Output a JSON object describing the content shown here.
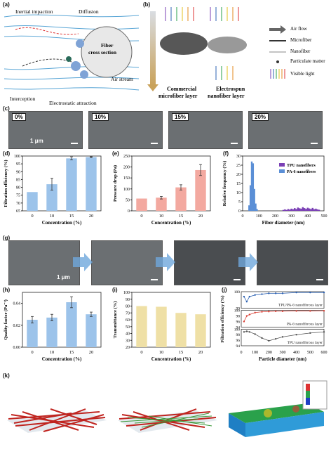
{
  "labels": {
    "a": "(a)",
    "b": "(b)",
    "c": "(c)",
    "d": "(d)",
    "e": "(e)",
    "f": "(f)",
    "g": "(g)",
    "h": "(h)",
    "i": "(i)",
    "j": "(j)",
    "k": "(k)"
  },
  "panel_a": {
    "inertial": "Inertial impaction",
    "diffusion": "Diffusion",
    "fiber1": "Fiber",
    "fiber2": "cross section",
    "air": "Air stream",
    "interception": "Interception",
    "electrostatic": "Electrostatic attraction"
  },
  "panel_b": {
    "commercial1": "Commercial",
    "commercial2": "microfiber layer",
    "electro1": "Electrospun",
    "electro2": "nanofiber layer",
    "legend": [
      "Air flow",
      "Microfiber",
      "Nanofiber",
      "Particulate matter",
      "Visible light"
    ]
  },
  "panel_c": {
    "tags": [
      "0%",
      "10%",
      "15%",
      "20%"
    ],
    "scale": "1 μm"
  },
  "panel_g": {
    "scale": "1 μm"
  },
  "chart_data": [
    {
      "id": "d",
      "type": "bar",
      "categories": [
        "0",
        "10",
        "15",
        "20"
      ],
      "values": [
        77,
        82,
        98.5,
        99.3
      ],
      "errors": [
        0,
        3.8,
        1,
        0.4
      ],
      "ylabel": "Filtration efficiency (%)",
      "xlabel": "Concentration (%)",
      "ylim": [
        65,
        100
      ],
      "yticks": [
        "65",
        "70",
        "75",
        "80",
        "85",
        "90",
        "95",
        "100"
      ],
      "color": "#9cc3ea"
    },
    {
      "id": "e",
      "type": "bar",
      "categories": [
        "0",
        "10",
        "15",
        "20"
      ],
      "values": [
        56,
        60,
        107,
        186
      ],
      "errors": [
        0,
        6,
        12,
        25
      ],
      "ylabel": "Pressure drop (Pa)",
      "xlabel": "Concentration (%)",
      "ylim": [
        0,
        250
      ],
      "yticks": [
        "0",
        "50",
        "100",
        "150",
        "200",
        "250"
      ],
      "color": "#f3a9a0"
    },
    {
      "id": "f",
      "type": "histogram",
      "xlabel": "Fiber diameter (nm)",
      "ylabel": "Relative frequency (%)",
      "xlim": [
        0,
        500
      ],
      "ylim": [
        0,
        30
      ],
      "xticks": [
        "0",
        "100",
        "200",
        "300",
        "400",
        "500"
      ],
      "yticks": [
        "0",
        "5",
        "10",
        "15",
        "20",
        "25",
        "30"
      ],
      "series": [
        {
          "name": "TPU nanofibers",
          "color": "#7a3fb5",
          "x": [
            250,
            260,
            270,
            280,
            290,
            300,
            310,
            320,
            330,
            340,
            350,
            360,
            370,
            380,
            390,
            400,
            410,
            420,
            430,
            440,
            450,
            460,
            470
          ],
          "values": [
            0.5,
            0.8,
            0.5,
            1,
            0.7,
            1.2,
            0.9,
            1.5,
            1,
            1.8,
            1.4,
            1.2,
            2,
            1.5,
            1.1,
            1.7,
            1.3,
            1,
            1.6,
            0.9,
            1.2,
            0.8,
            0.6
          ]
        },
        {
          "name": "PA-6 nanofibers",
          "color": "#5b8fd6",
          "x": [
            40,
            48,
            56,
            64,
            72,
            80,
            88
          ],
          "values": [
            3,
            14,
            27,
            26,
            12,
            4,
            1
          ]
        }
      ]
    },
    {
      "id": "h",
      "type": "bar",
      "categories": [
        "0",
        "10",
        "15",
        "20"
      ],
      "values": [
        0.025,
        0.027,
        0.041,
        0.03
      ],
      "errors": [
        0.003,
        0.003,
        0.005,
        0.002
      ],
      "ylabel": "Quality factor (Pa⁻¹)",
      "xlabel": "Concentration (%)",
      "ylim": [
        0,
        0.05
      ],
      "yticks": [
        "0.00",
        "0.02",
        "0.04"
      ],
      "color": "#9cc3ea"
    },
    {
      "id": "i",
      "type": "bar",
      "categories": [
        "0",
        "10",
        "15",
        "20"
      ],
      "values": [
        80,
        79,
        70,
        68
      ],
      "ylabel": "Transmittance (%)",
      "xlabel": "Concentration (%)",
      "ylim": [
        20,
        100
      ],
      "yticks": [
        "20",
        "30",
        "40",
        "50",
        "60",
        "70",
        "80",
        "90",
        "100"
      ],
      "color": "#efe0a6"
    },
    {
      "id": "j",
      "type": "line",
      "xlabel": "Particle diameter (nm)",
      "ylabel": "Filtration efficiency (%)",
      "x": [
        20,
        40,
        60,
        100,
        150,
        200,
        250,
        300,
        400,
        500,
        600
      ],
      "series": [
        {
          "name": "TPU/PA-6 nanofibrous layer",
          "color": "#2f63b3",
          "values": [
            99.7,
            99.4,
            99.7,
            99.8,
            99.85,
            99.9,
            99.9,
            99.9,
            99.95,
            99.95,
            99.95
          ],
          "ylim": [
            99,
            100
          ],
          "yticks": [
            "99",
            "100"
          ]
        },
        {
          "name": "PA-6 nanofibrous layer",
          "color": "#d9453b",
          "values": [
            96,
            98,
            98.5,
            99.2,
            99.5,
            99.6,
            99.7,
            99.7,
            99.8,
            99.8,
            99.85
          ],
          "ylim": [
            94,
            100
          ],
          "yticks": [
            "94",
            "96",
            "98",
            "100"
          ]
        },
        {
          "name": "TPU nanofibrous layer",
          "color": "#555555",
          "values": [
            99,
            99.2,
            99,
            98.2,
            96.8,
            95.8,
            96.5,
            97.2,
            98,
            98.6,
            99
          ],
          "ylim": [
            94,
            100
          ],
          "yticks": [
            "94",
            "96",
            "98",
            "100"
          ]
        }
      ]
    }
  ]
}
